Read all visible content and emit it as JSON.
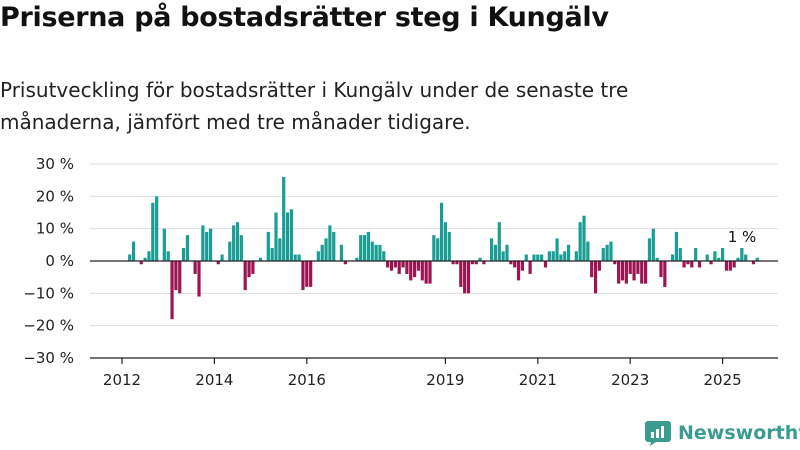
{
  "title": "Priserna på bostadsrätter steg i Kungälv",
  "subtitle": "Prisutveckling för bostadsrätter i Kungälv under de senaste tre månaderna, jämfört med tre månader tidigare.",
  "brand": {
    "name": "Newsworthy",
    "logo_icon": "newsworthy-logo-icon"
  },
  "colors": {
    "positive": "#1a9e94",
    "negative": "#9c1451",
    "grid": "#dddddd",
    "axis": "#222222"
  },
  "chart_data": {
    "type": "bar",
    "title": "",
    "xlabel": "",
    "ylabel": "",
    "ylim": [
      -30,
      30
    ],
    "yticks": [
      -30,
      -20,
      -10,
      0,
      10,
      20,
      30
    ],
    "ytick_labels": [
      "−30 %",
      "−20 %",
      "−10 %",
      "0 %",
      "10 %",
      "20 %",
      "30 %"
    ],
    "xticks": [
      {
        "label": "2012",
        "index": 0
      },
      {
        "label": "2014",
        "index": 24
      },
      {
        "label": "2016",
        "index": 48
      },
      {
        "label": "2019",
        "index": 84
      },
      {
        "label": "2021",
        "index": 108
      },
      {
        "label": "2023",
        "index": 132
      },
      {
        "label": "2025",
        "index": 156
      }
    ],
    "grid": true,
    "annotation": {
      "text": "1 %",
      "index": 162
    },
    "series": [
      {
        "values": [
          0,
          0,
          2,
          6,
          0,
          -1,
          1,
          3,
          18,
          20,
          0,
          10,
          3,
          -18,
          -9,
          -10,
          4,
          8,
          0,
          -4,
          -11,
          11,
          9,
          10,
          0,
          -1,
          2,
          0,
          6,
          11,
          12,
          8,
          -9,
          -5,
          -4,
          0,
          1,
          0,
          9,
          4,
          15,
          7,
          26,
          15,
          16,
          2,
          2,
          -9,
          -8,
          -8,
          0,
          3,
          5,
          7,
          11,
          9,
          0,
          5,
          -1,
          0,
          0,
          1,
          8,
          8,
          9,
          6,
          5,
          5,
          3,
          -2,
          -3,
          -2,
          -4,
          -2,
          -4,
          -6,
          -5,
          -3,
          -6,
          -7,
          -7,
          8,
          7,
          18,
          12,
          9,
          -1,
          -1,
          -8,
          -10,
          -10,
          -1,
          -1,
          1,
          -1,
          0,
          7,
          5,
          12,
          3,
          5,
          -1,
          -2,
          -6,
          -3,
          2,
          -4,
          2,
          2,
          2,
          -2,
          3,
          3,
          7,
          2,
          3,
          5,
          0,
          3,
          12,
          14,
          6,
          -5,
          -10,
          -3,
          4,
          5,
          6,
          -1,
          -7,
          -6,
          -7,
          -4,
          -6,
          -4,
          -7,
          -7,
          7,
          10,
          1,
          -5,
          -8,
          0,
          2,
          9,
          4,
          -2,
          -1,
          -2,
          4,
          -2,
          0,
          2,
          -1,
          3,
          1,
          4,
          -3,
          -3,
          -2,
          1,
          4,
          2,
          0,
          -1,
          1
        ]
      }
    ]
  }
}
